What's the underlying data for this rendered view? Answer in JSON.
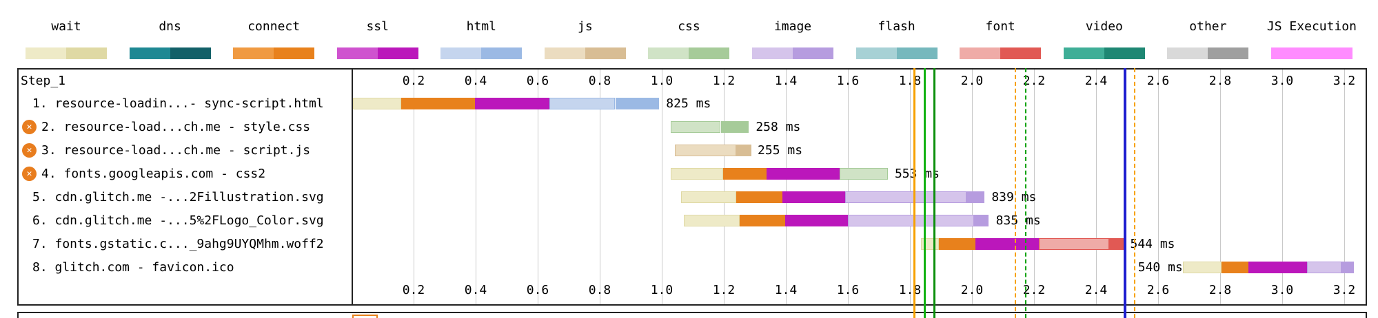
{
  "chart_data": {
    "type": "bar",
    "subtype": "network-request-waterfall",
    "step_label": "Step_1",
    "time_unit": "seconds",
    "ticks": [
      "0.2",
      "0.4",
      "0.6",
      "0.8",
      "1.0",
      "1.2",
      "1.4",
      "1.6",
      "1.8",
      "2.0",
      "2.2",
      "2.4",
      "2.6",
      "2.8",
      "3.0",
      "3.2"
    ],
    "time_max": 3.27,
    "legend": {
      "items": [
        {
          "name": "wait",
          "label": "wait",
          "light": "#eeeac7",
          "dark": "#dfd9a4"
        },
        {
          "name": "dns",
          "label": "dns",
          "light": "#1e8893",
          "dark": "#126068"
        },
        {
          "name": "connect",
          "label": "connect",
          "light": "#f09a41",
          "dark": "#e8811c"
        },
        {
          "name": "ssl",
          "label": "ssl",
          "light": "#cf52cf",
          "dark": "#bb17bb"
        },
        {
          "name": "html",
          "label": "html",
          "light": "#c5d5ee",
          "dark": "#9bb9e4"
        },
        {
          "name": "js",
          "label": "js",
          "light": "#ebdcc0",
          "dark": "#d8bd94"
        },
        {
          "name": "css",
          "label": "css",
          "light": "#d0e3c6",
          "dark": "#a6cb99"
        },
        {
          "name": "image",
          "label": "image",
          "light": "#d5c4eb",
          "dark": "#b69cdf"
        },
        {
          "name": "flash",
          "label": "flash",
          "light": "#a7d1d5",
          "dark": "#76b8bd"
        },
        {
          "name": "font",
          "label": "font",
          "light": "#efaba7",
          "dark": "#e15954"
        },
        {
          "name": "video",
          "label": "video",
          "light": "#3fae97",
          "dark": "#1e8773"
        },
        {
          "name": "other",
          "label": "other",
          "light": "#d9d9d9",
          "dark": "#9f9f9f"
        },
        {
          "name": "js_execution",
          "label": "JS Execution",
          "light": "#ff8cff",
          "dark": "#ff8cff"
        }
      ]
    },
    "rows": [
      {
        "label": "1. resource-loadin...- sync-script.html",
        "blocked": false,
        "duration": "825 ms",
        "label_t": 1.014,
        "segments": [
          [
            "wait",
            "light",
            0.005,
            0.16
          ],
          [
            "connect",
            "dark",
            0.16,
            0.397
          ],
          [
            "ssl",
            "dark",
            0.397,
            0.637
          ],
          [
            "html",
            "light",
            0.637,
            0.85
          ],
          [
            "html",
            "dark",
            0.85,
            0.992
          ]
        ]
      },
      {
        "label": "2. resource-load...ch.me - style.css",
        "blocked": true,
        "duration": "258 ms",
        "label_t": 1.303,
        "segments": [
          [
            "css",
            "light",
            1.028,
            1.19
          ],
          [
            "css",
            "dark",
            1.19,
            1.281
          ]
        ]
      },
      {
        "label": "3. resource-load...ch.me - script.js",
        "blocked": true,
        "duration": "255 ms",
        "label_t": 1.309,
        "segments": [
          [
            "js",
            "light",
            1.043,
            1.241
          ],
          [
            "js",
            "dark",
            1.241,
            1.289
          ]
        ]
      },
      {
        "label": "4. fonts.googleapis.com - css2",
        "blocked": true,
        "duration": "553 ms",
        "label_t": 1.751,
        "segments": [
          [
            "wait",
            "light",
            1.028,
            1.198
          ],
          [
            "connect",
            "dark",
            1.198,
            1.337
          ],
          [
            "ssl",
            "dark",
            1.337,
            1.573
          ],
          [
            "css",
            "light",
            1.573,
            1.728
          ]
        ]
      },
      {
        "label": "5. cdn.glitch.me -...2Fillustration.svg",
        "blocked": false,
        "duration": "839 ms",
        "label_t": 2.063,
        "segments": [
          [
            "wait",
            "light",
            1.062,
            1.241
          ],
          [
            "connect",
            "dark",
            1.241,
            1.388
          ],
          [
            "ssl",
            "dark",
            1.388,
            1.592
          ],
          [
            "image",
            "light",
            1.592,
            1.983
          ],
          [
            "image",
            "dark",
            1.983,
            2.04
          ]
        ]
      },
      {
        "label": "6. cdn.glitch.me -...5%2FLogo_Color.svg",
        "blocked": false,
        "duration": "835 ms",
        "label_t": 2.077,
        "segments": [
          [
            "wait",
            "light",
            1.071,
            1.252
          ],
          [
            "connect",
            "dark",
            1.252,
            1.397
          ],
          [
            "ssl",
            "dark",
            1.397,
            1.601
          ],
          [
            "image",
            "light",
            1.601,
            2.006
          ],
          [
            "image",
            "dark",
            2.006,
            2.054
          ]
        ]
      },
      {
        "label": "7. fonts.gstatic.c..._9ahg9UYQMhm.woff2",
        "blocked": false,
        "duration": "544 ms",
        "label_t": 2.51,
        "segments": [
          [
            "wait",
            "light",
            1.836,
            1.893
          ],
          [
            "connect",
            "dark",
            1.893,
            2.012
          ],
          [
            "ssl",
            "dark",
            2.012,
            2.216
          ],
          [
            "font",
            "light",
            2.216,
            2.442
          ],
          [
            "font",
            "dark",
            2.442,
            2.488
          ]
        ]
      },
      {
        "label": "8. glitch.com - favicon.ico",
        "blocked": false,
        "duration": "540 ms",
        "label_t": 2.535,
        "segments": [
          [
            "wait",
            "light",
            2.68,
            2.805
          ],
          [
            "connect",
            "dark",
            2.805,
            2.89
          ],
          [
            "ssl",
            "dark",
            2.89,
            3.08
          ],
          [
            "image",
            "light",
            3.08,
            3.19
          ],
          [
            "image",
            "dark",
            3.19,
            3.23
          ]
        ]
      }
    ],
    "event_lines": [
      {
        "t": 1.815,
        "color": "#f7a100",
        "style": "solid",
        "w": 3
      },
      {
        "t": 1.847,
        "color": "#12b212",
        "style": "solid",
        "w": 3
      },
      {
        "t": 1.878,
        "color": "#0b8f0b",
        "style": "solid",
        "w": 3
      },
      {
        "t": 2.14,
        "color": "#f7a100",
        "style": "dashed",
        "w": 2
      },
      {
        "t": 2.173,
        "color": "#12a312",
        "style": "dashed",
        "w": 2
      },
      {
        "t": 2.493,
        "color": "#1f1fd0",
        "style": "solid",
        "w": 4
      },
      {
        "t": 2.525,
        "color": "#f7a100",
        "style": "dashed",
        "w": 2
      }
    ],
    "next_section": {
      "outline_color": "#e8811c"
    }
  }
}
